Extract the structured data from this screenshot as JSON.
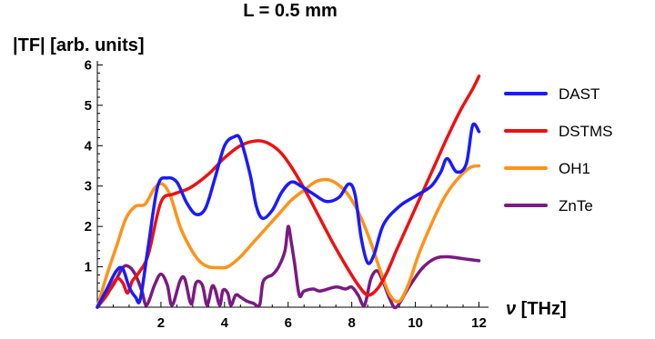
{
  "chart_data": {
    "type": "line",
    "title": "L = 0.5 mm",
    "ylabel": "|TF| [arb. units]",
    "xlabel_symbol": "ν",
    "xlabel_unit": " [THz]",
    "xlim": [
      0,
      12.3
    ],
    "ylim": [
      0,
      6.1
    ],
    "xticks": [
      2,
      4,
      6,
      8,
      10,
      12
    ],
    "yticks": [
      1,
      2,
      3,
      4,
      5,
      6
    ],
    "grid": false,
    "legend_position": "right",
    "series": [
      {
        "name": "DAST",
        "color": "#1a1aff",
        "x": [
          0,
          0.3,
          0.6,
          0.8,
          1.0,
          1.2,
          1.35,
          1.6,
          1.9,
          2.2,
          2.5,
          2.8,
          3.1,
          3.4,
          3.7,
          4.0,
          4.3,
          4.5,
          4.8,
          5.0,
          5.2,
          5.5,
          5.8,
          6.1,
          6.4,
          6.8,
          7.2,
          7.6,
          7.9,
          8.1,
          8.3,
          8.5,
          8.7,
          9.0,
          9.5,
          10.0,
          10.5,
          10.8,
          11.0,
          11.3,
          11.6,
          11.8,
          12.0
        ],
        "y": [
          0,
          0.45,
          0.9,
          0.95,
          0.5,
          0.25,
          0.2,
          1.5,
          3.0,
          3.2,
          3.1,
          2.6,
          2.3,
          2.45,
          3.2,
          4.0,
          4.22,
          4.15,
          3.3,
          2.5,
          2.2,
          2.4,
          2.85,
          3.1,
          3.0,
          2.8,
          2.62,
          2.72,
          3.05,
          2.8,
          1.7,
          1.1,
          1.3,
          2.05,
          2.5,
          2.75,
          3.0,
          3.35,
          3.68,
          3.35,
          3.55,
          4.5,
          4.35
        ]
      },
      {
        "name": "DSTMS",
        "color": "#ee1111",
        "x": [
          0,
          0.3,
          0.6,
          0.8,
          0.95,
          1.1,
          1.3,
          1.6,
          2.0,
          2.4,
          2.9,
          3.5,
          4.0,
          4.5,
          5.0,
          5.4,
          5.8,
          6.2,
          6.6,
          7.0,
          7.4,
          7.8,
          8.2,
          8.5,
          8.8,
          9.1,
          9.4,
          9.8,
          10.2,
          10.6,
          11.0,
          11.4,
          11.8,
          12.0
        ],
        "y": [
          0,
          0.3,
          0.7,
          0.6,
          0.35,
          0.65,
          0.85,
          1.3,
          2.6,
          2.8,
          2.95,
          3.3,
          3.7,
          4.0,
          4.12,
          4.05,
          3.8,
          3.35,
          2.8,
          2.2,
          1.6,
          1.05,
          0.55,
          0.3,
          0.45,
          0.85,
          1.4,
          2.1,
          2.8,
          3.5,
          4.2,
          4.85,
          5.4,
          5.72
        ]
      },
      {
        "name": "OH1",
        "color": "#ff9218",
        "x": [
          0,
          0.3,
          0.6,
          0.9,
          1.2,
          1.5,
          1.8,
          2.05,
          2.3,
          2.6,
          2.9,
          3.2,
          3.5,
          3.8,
          4.1,
          4.5,
          4.9,
          5.3,
          5.7,
          6.1,
          6.5,
          6.9,
          7.3,
          7.7,
          8.0,
          8.3,
          8.6,
          8.9,
          9.2,
          9.5,
          9.8,
          10.1,
          10.5,
          10.9,
          11.3,
          11.7,
          12.0
        ],
        "y": [
          0,
          0.8,
          1.5,
          2.2,
          2.5,
          2.55,
          2.95,
          3.05,
          2.75,
          2.0,
          1.5,
          1.15,
          1.0,
          0.98,
          1.0,
          1.25,
          1.6,
          1.95,
          2.3,
          2.65,
          2.9,
          3.12,
          3.15,
          2.95,
          2.65,
          2.2,
          1.6,
          0.9,
          0.3,
          0.15,
          0.6,
          1.3,
          2.05,
          2.7,
          3.15,
          3.45,
          3.5
        ]
      },
      {
        "name": "ZnTe",
        "color": "#7a1a82",
        "x": [
          0,
          0.5,
          0.8,
          1.0,
          1.2,
          1.4,
          1.55,
          1.8,
          2.0,
          2.2,
          2.35,
          2.6,
          2.75,
          2.95,
          3.1,
          3.3,
          3.45,
          3.6,
          3.7,
          3.85,
          3.95,
          4.1,
          4.2,
          4.35,
          4.5,
          4.7,
          4.9,
          5.1,
          5.2,
          5.35,
          5.5,
          5.7,
          5.9,
          6.0,
          6.1,
          6.2,
          6.35,
          6.5,
          6.8,
          7.0,
          7.5,
          7.8,
          8.0,
          8.2,
          8.4,
          8.6,
          8.8,
          9.0,
          9.2,
          9.4,
          9.8,
          10.2,
          10.6,
          11.0,
          11.5,
          12.0
        ],
        "y": [
          0,
          0.55,
          0.98,
          1.0,
          0.8,
          0.4,
          0.05,
          0.55,
          0.82,
          0.55,
          0.05,
          0.65,
          0.7,
          0.08,
          0.6,
          0.55,
          0.05,
          0.5,
          0.45,
          0.05,
          0.42,
          0.35,
          0.05,
          0.3,
          0.25,
          0.15,
          0.1,
          0.05,
          0.6,
          0.75,
          0.8,
          1.0,
          1.4,
          2.0,
          1.6,
          1.1,
          0.3,
          0.4,
          0.45,
          0.4,
          0.5,
          0.45,
          0.5,
          0.3,
          0.05,
          0.7,
          0.9,
          0.6,
          0.2,
          0.0,
          0.5,
          0.95,
          1.2,
          1.25,
          1.2,
          1.15
        ]
      }
    ]
  }
}
